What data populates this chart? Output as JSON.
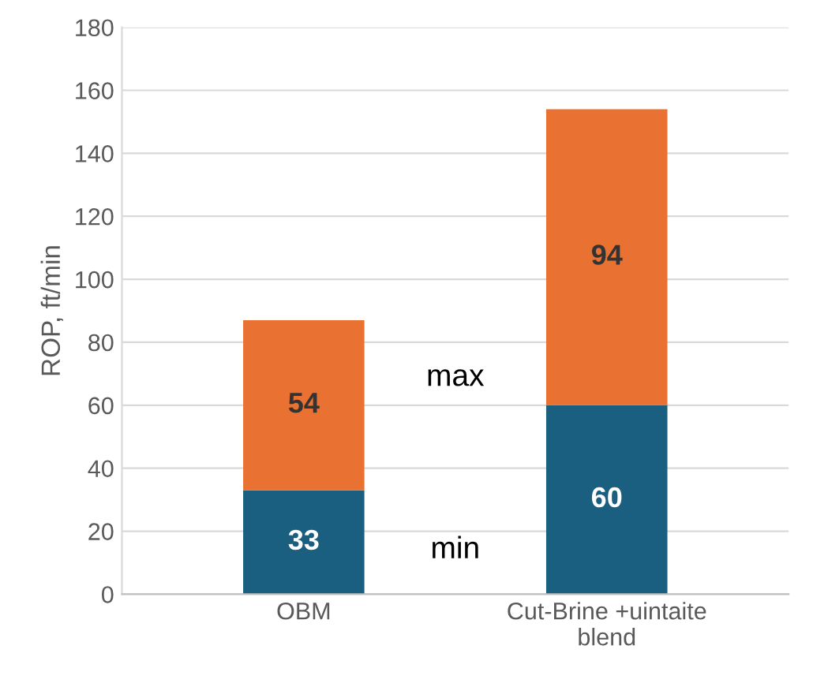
{
  "chart_data": {
    "type": "bar",
    "stacked": true,
    "ylabel": "ROP, ft/min",
    "categories": [
      "OBM",
      "Cut-Brine +uintaite\nblend"
    ],
    "series": [
      {
        "name": "min",
        "color": "#1b5f80",
        "values": [
          33,
          60
        ]
      },
      {
        "name": "max",
        "color": "#e97132",
        "values": [
          54,
          94
        ]
      }
    ],
    "ylim": [
      0,
      180
    ],
    "yticks": [
      0,
      20,
      40,
      60,
      80,
      100,
      120,
      140,
      160,
      180
    ],
    "grid": "y",
    "data_labels": true,
    "legend": false
  }
}
